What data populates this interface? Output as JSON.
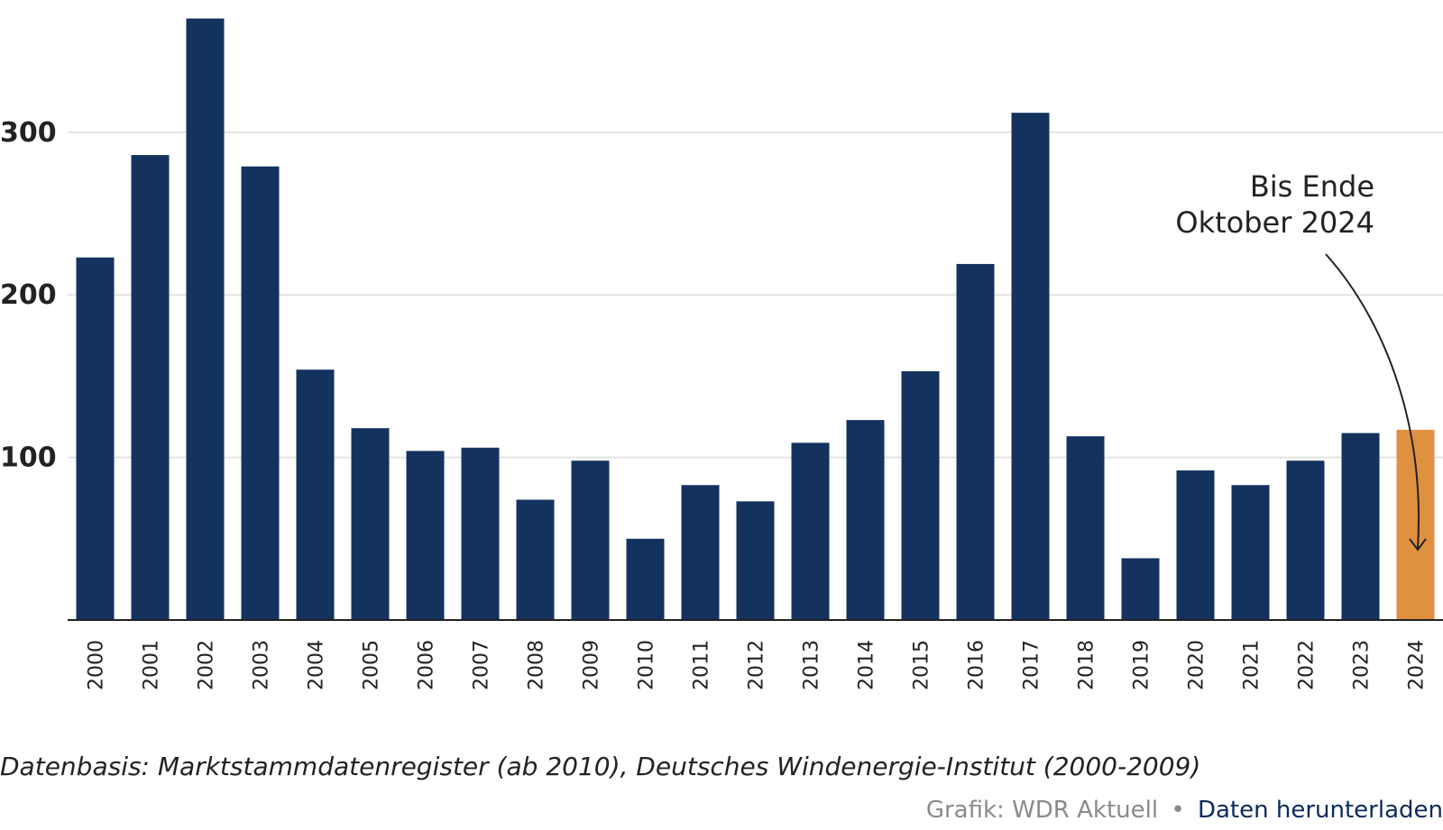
{
  "chart_data": {
    "type": "bar",
    "categories": [
      "2000",
      "2001",
      "2002",
      "2003",
      "2004",
      "2005",
      "2006",
      "2007",
      "2008",
      "2009",
      "2010",
      "2011",
      "2012",
      "2013",
      "2014",
      "2015",
      "2016",
      "2017",
      "2018",
      "2019",
      "2020",
      "2021",
      "2022",
      "2023",
      "2024"
    ],
    "values": [
      223,
      286,
      370,
      279,
      154,
      118,
      104,
      106,
      74,
      98,
      50,
      83,
      73,
      109,
      123,
      153,
      219,
      312,
      113,
      38,
      92,
      83,
      98,
      115,
      117
    ],
    "ylim": [
      0,
      370
    ],
    "yticks": [
      "100",
      "200",
      "300"
    ],
    "grid": true,
    "colors": {
      "bar": "#13325e",
      "highlight": "#e0913f"
    },
    "highlight_category": "2024",
    "annotation": {
      "lines": [
        "Bis Ende",
        "Oktober 2024"
      ],
      "target": "2024"
    }
  },
  "footer": {
    "source": "Datenbasis: Marktstammdatenregister (ab 2010), Deutsches Windenergie-Institut (2000-2009)",
    "credit": "Grafik: WDR Aktuell",
    "separator": "•",
    "download_link": "Daten herunterladen"
  }
}
